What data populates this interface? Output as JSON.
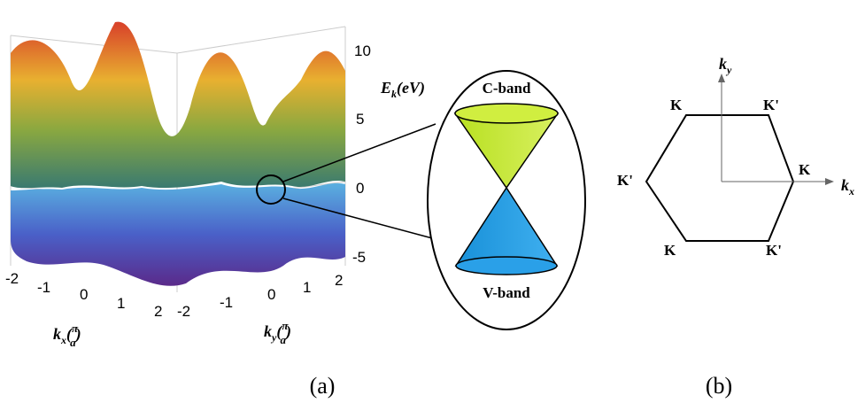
{
  "panel_a": {
    "energy_axis": {
      "label": {
        "symbol": "E",
        "subscript": "k",
        "unit": "(eV)"
      },
      "ticks": [
        10,
        5,
        0,
        -5
      ]
    },
    "kx_axis": {
      "label": {
        "symbol": "k",
        "subscript": "x",
        "open": "(",
        "numerator": "π",
        "denominator": "a",
        "close": ")"
      },
      "ticks": [
        -2,
        -1,
        0,
        1,
        2
      ]
    },
    "ky_axis": {
      "label": {
        "symbol": "k",
        "subscript": "y",
        "open": "(",
        "numerator": "π",
        "denominator": "a",
        "close": ")"
      },
      "ticks": [
        -2,
        -1,
        0,
        1,
        2
      ]
    },
    "inset": {
      "upper": "C-band",
      "lower": "V-band"
    },
    "caption": "(a)"
  },
  "panel_b": {
    "x_axis": {
      "symbol": "k",
      "subscript": "x"
    },
    "y_axis": {
      "symbol": "k",
      "subscript": "y"
    },
    "points": [
      "K",
      "K'",
      "K",
      "K'",
      "K",
      "K'"
    ],
    "caption": "(b)"
  }
}
